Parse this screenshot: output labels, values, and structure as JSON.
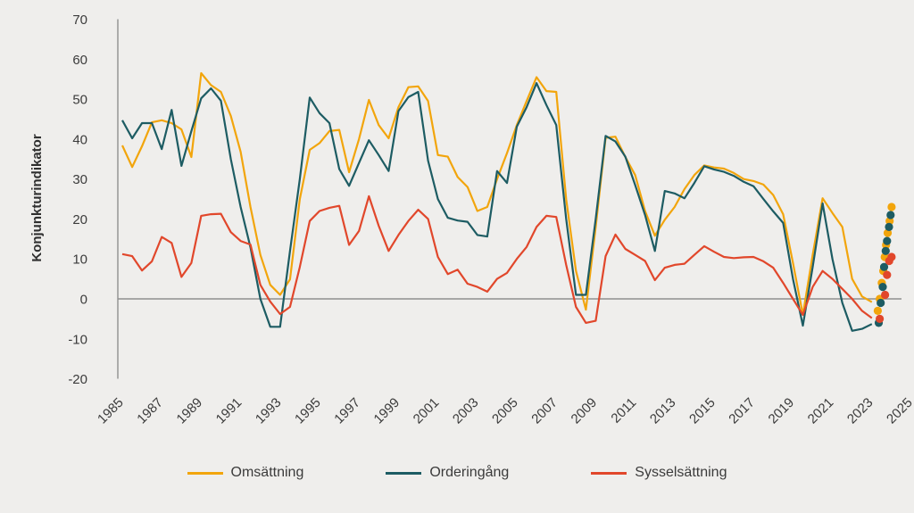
{
  "page": {
    "background_color": "#efeeec",
    "text_color": "#3b3b3b"
  },
  "chart_data": {
    "type": "line",
    "title": "",
    "xlabel": "",
    "ylabel": "Konjunkturindikator",
    "ylim": [
      -20,
      70
    ],
    "yticks": [
      70,
      60,
      50,
      40,
      30,
      20,
      10,
      0,
      -10,
      -20
    ],
    "xticks": [
      1985,
      1987,
      1989,
      1991,
      1993,
      1995,
      1997,
      1999,
      2001,
      2003,
      2005,
      2007,
      2009,
      2011,
      2013,
      2015,
      2017,
      2019,
      2021,
      2023,
      2025
    ],
    "x_start": 1986.0,
    "x_step": 0.5,
    "x_end": 2024.0,
    "grid": false,
    "zero_line": true,
    "axis_color": "#8f8f8f",
    "legend_position": "bottom-center",
    "series": [
      {
        "name": "Omsättning",
        "color": "#F2A50C",
        "values": [
          38.4,
          33,
          38.2,
          44.2,
          44.7,
          44,
          42.4,
          35.5,
          56.5,
          53.5,
          51.8,
          45.8,
          36.8,
          23,
          11,
          3.5,
          1,
          4.9,
          25,
          37.3,
          39,
          42,
          42.3,
          31.7,
          40,
          49.8,
          43.5,
          40.2,
          48,
          53,
          53.2,
          49.5,
          36,
          35.6,
          30.5,
          28,
          22,
          23,
          30,
          36.5,
          43.5,
          49.5,
          55.5,
          52,
          51.8,
          25,
          7,
          -2.7,
          18,
          40.3,
          40.6,
          35.5,
          31,
          22,
          15.8,
          19.8,
          23,
          27.5,
          31,
          33.4,
          32.9,
          32.6,
          31.5,
          30,
          29.5,
          28.6,
          26,
          21.2,
          9,
          -4,
          11,
          25.2,
          21.5,
          18,
          5,
          0.6,
          -0.8
        ]
      },
      {
        "name": "Orderingång",
        "color": "#1D5C63",
        "values": [
          44.7,
          40.2,
          44,
          44,
          37.5,
          47.3,
          33.3,
          42,
          50.2,
          52.7,
          49.6,
          35,
          23,
          12.9,
          0,
          -7,
          -7,
          12,
          30,
          50.4,
          46.5,
          44,
          32.5,
          28.3,
          34,
          39.7,
          36,
          32,
          47,
          50.5,
          51.8,
          34.6,
          25,
          20.3,
          19.6,
          19.3,
          16,
          15.6,
          32,
          29,
          43.1,
          48,
          54,
          48.5,
          43.5,
          20,
          1,
          1,
          20,
          40.8,
          39.4,
          35.6,
          28.5,
          21,
          12,
          27,
          26.4,
          25.2,
          29,
          33.2,
          32.4,
          31.8,
          30.8,
          29.3,
          28.2,
          25,
          21.9,
          19,
          5,
          -6.7,
          8,
          23.9,
          10,
          -1,
          -8,
          -7.5,
          -6.3
        ]
      },
      {
        "name": "Sysselsättning",
        "color": "#E1472B",
        "values": [
          11.2,
          10.7,
          7.1,
          9.4,
          15.5,
          14,
          5.5,
          9,
          20.8,
          21.2,
          21.3,
          16.7,
          14.5,
          13.6,
          3.5,
          -0.7,
          -3.8,
          -2,
          8,
          19.5,
          22,
          22.8,
          23.3,
          13.5,
          17,
          25.7,
          18.3,
          12,
          16,
          19.5,
          22.3,
          20,
          10.5,
          6.2,
          7.3,
          3.8,
          3,
          1.8,
          5,
          6.5,
          10,
          13,
          18,
          20.8,
          20.5,
          8.5,
          -2,
          -6,
          -5.5,
          10.7,
          16.1,
          12.5,
          11,
          9.5,
          4.7,
          7.8,
          8.5,
          8.8,
          11,
          13.2,
          11.8,
          10.5,
          10.2,
          10.4,
          10.5,
          9.4,
          7.8,
          4,
          0,
          -4,
          3,
          7,
          5,
          2.5,
          0,
          -3,
          -4.8
        ]
      }
    ],
    "recent_monthly_dots": [
      {
        "series": "Omsättning",
        "color": "#F2A50C",
        "points": [
          [
            2024.3,
            -3
          ],
          [
            2024.4,
            0
          ],
          [
            2024.5,
            4
          ],
          [
            2024.58,
            7
          ],
          [
            2024.65,
            10.5
          ],
          [
            2024.72,
            13.5
          ],
          [
            2024.8,
            16.5
          ],
          [
            2024.9,
            19.5
          ],
          [
            2025.0,
            23
          ]
        ]
      },
      {
        "series": "Orderingång",
        "color": "#1D5C63",
        "points": [
          [
            2024.35,
            -6
          ],
          [
            2024.45,
            -1
          ],
          [
            2024.55,
            3
          ],
          [
            2024.62,
            8
          ],
          [
            2024.7,
            12
          ],
          [
            2024.77,
            14.5
          ],
          [
            2024.87,
            18
          ],
          [
            2024.95,
            21
          ]
        ]
      },
      {
        "series": "Sysselsättning",
        "color": "#E1472B",
        "points": [
          [
            2024.4,
            -5
          ],
          [
            2024.67,
            1
          ],
          [
            2024.77,
            6
          ],
          [
            2024.88,
            9.5
          ],
          [
            2025.0,
            10.5
          ]
        ]
      }
    ],
    "legend_labels": [
      "Omsättning",
      "Orderingång",
      "Sysselsättning"
    ]
  }
}
